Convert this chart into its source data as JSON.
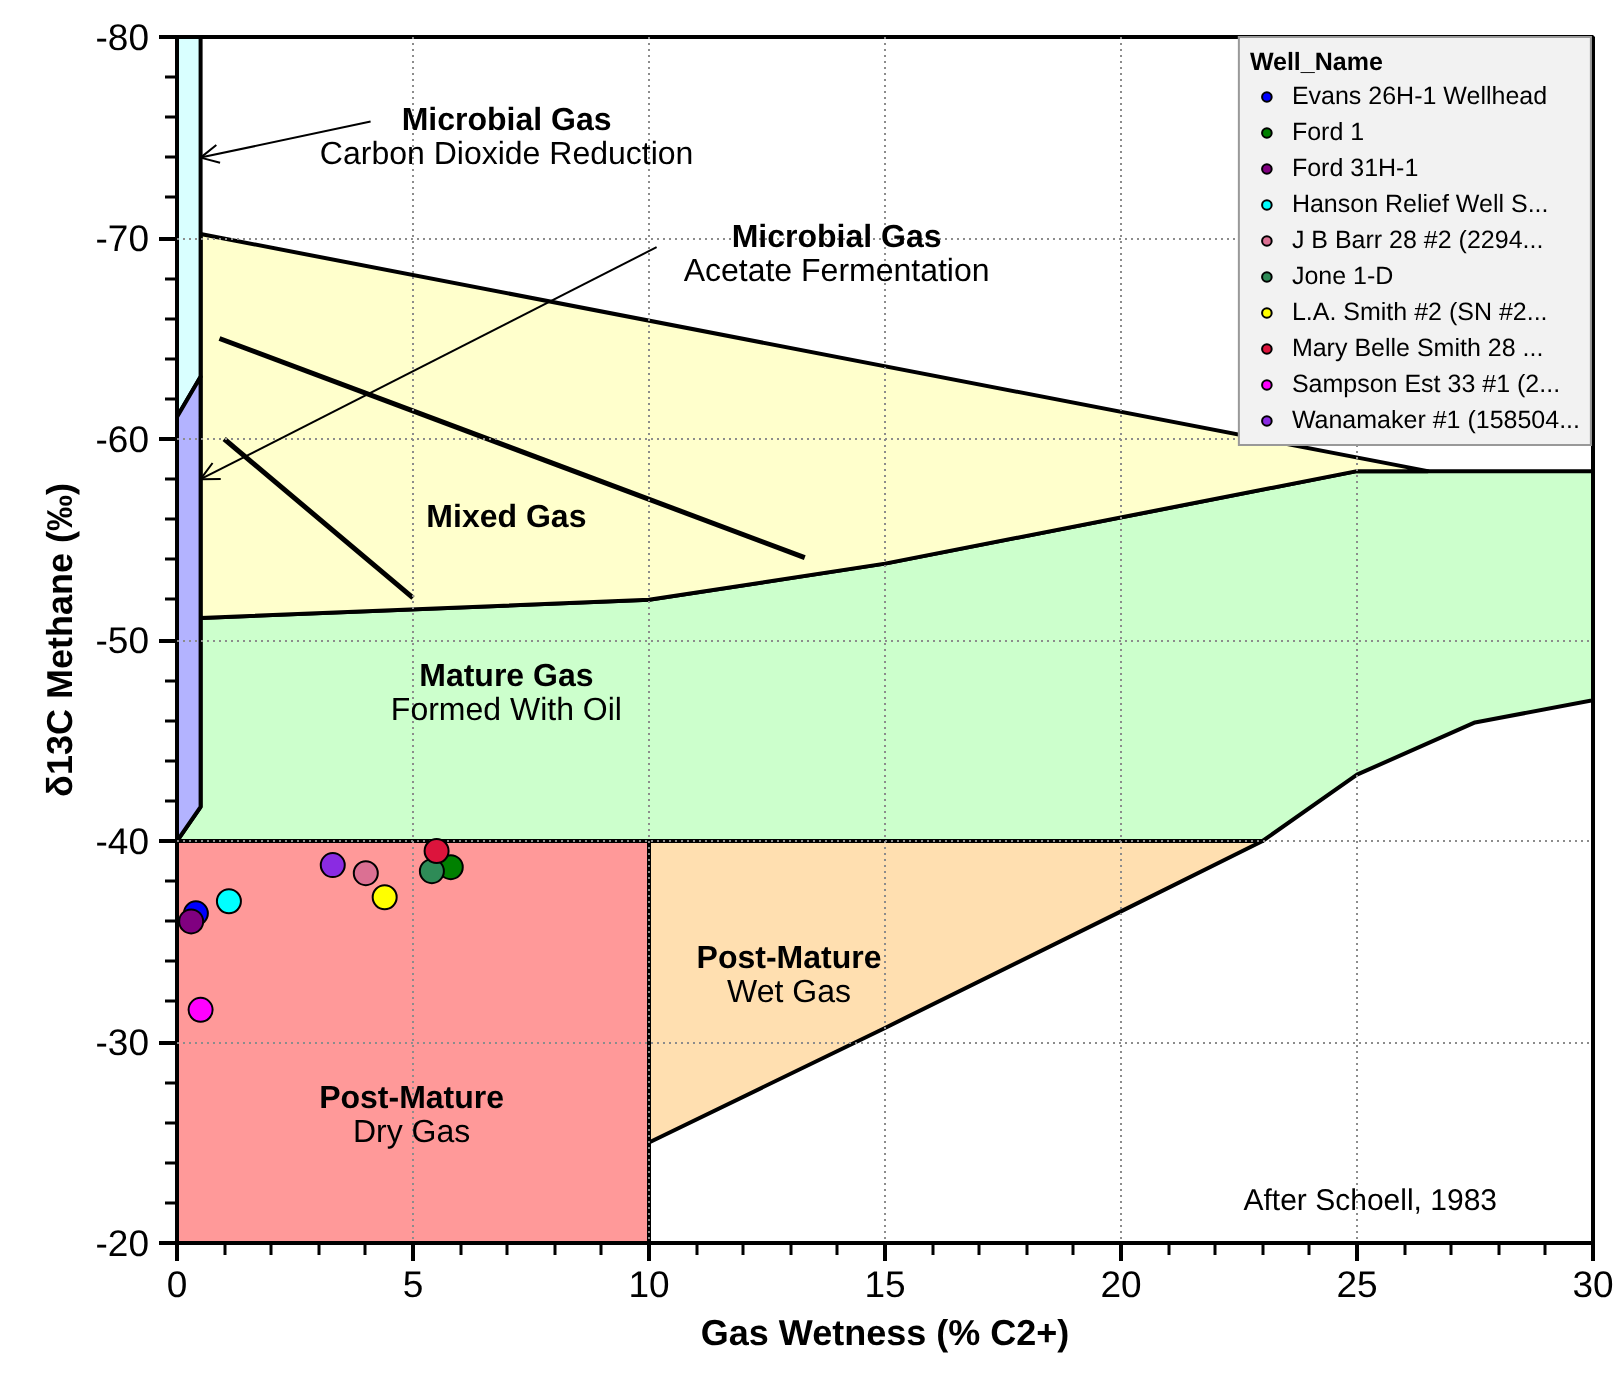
{
  "chart_data": {
    "type": "scatter",
    "xlabel": "Gas Wetness (% C2+)",
    "ylabel": "δ13C Methane (‰)",
    "legend_title": "Well_Name",
    "xlim": [
      0,
      30
    ],
    "ylim": [
      -20,
      -80
    ],
    "xticks": [
      0,
      {
        "value": 1,
        "label": null
      },
      {
        "value": 2,
        "label": null
      },
      {
        "value": 3,
        "label": null
      },
      {
        "value": 4,
        "label": null
      },
      5,
      {
        "value": 6,
        "label": null
      },
      {
        "value": 7,
        "label": null
      },
      {
        "value": 8,
        "label": null
      },
      {
        "value": 9,
        "label": null
      },
      10,
      {
        "value": 11,
        "label": null
      },
      {
        "value": 12,
        "label": null
      },
      {
        "value": 13,
        "label": null
      },
      {
        "value": 14,
        "label": null
      },
      15,
      {
        "value": 16,
        "label": null
      },
      {
        "value": 17,
        "label": null
      },
      {
        "value": 18,
        "label": null
      },
      {
        "value": 19,
        "label": null
      },
      20,
      {
        "value": 21,
        "label": null
      },
      {
        "value": 22,
        "label": null
      },
      {
        "value": 23,
        "label": null
      },
      {
        "value": 24,
        "label": null
      },
      25,
      {
        "value": 26,
        "label": null
      },
      {
        "value": 27,
        "label": null
      },
      {
        "value": 28,
        "label": null
      },
      {
        "value": 29,
        "label": null
      },
      30
    ],
    "yticks": [
      -20,
      {
        "value": -22,
        "label": null
      },
      {
        "value": -24,
        "label": null
      },
      {
        "value": -26,
        "label": null
      },
      {
        "value": -28,
        "label": null
      },
      -30,
      {
        "value": -32,
        "label": null
      },
      {
        "value": -34,
        "label": null
      },
      {
        "value": -36,
        "label": null
      },
      {
        "value": -38,
        "label": null
      },
      -40,
      {
        "value": -42,
        "label": null
      },
      {
        "value": -44,
        "label": null
      },
      {
        "value": -46,
        "label": null
      },
      {
        "value": -48,
        "label": null
      },
      -50,
      {
        "value": -52,
        "label": null
      },
      {
        "value": -54,
        "label": null
      },
      {
        "value": -56,
        "label": null
      },
      {
        "value": -58,
        "label": null
      },
      -60,
      {
        "value": -62,
        "label": null
      },
      {
        "value": -64,
        "label": null
      },
      {
        "value": -66,
        "label": null
      },
      {
        "value": -68,
        "label": null
      },
      -70,
      {
        "value": -72,
        "label": null
      },
      {
        "value": -74,
        "label": null
      },
      {
        "value": -76,
        "label": null
      },
      {
        "value": -78,
        "label": null
      },
      -80
    ],
    "grid": true,
    "legend": "top right",
    "annotations": [
      {
        "text": "Microbial Gas\nCarbon Dioxide Reduction",
        "x": 0.5,
        "y": -74
      },
      {
        "text": "Microbial Gas\nAcetate Fermentation",
        "x": 0.5,
        "y": -58
      },
      "Mixed Gas",
      "Mature Gas\nFormed With Oil",
      "Post-Mature\nWet Gas",
      "Post-Mature\nDry Gas",
      "After Schoell, 1983"
    ],
    "series": [
      {
        "type": "area",
        "color": "#ff9999",
        "x": [
          0,
          10
        ],
        "values": [
          -40,
          -40
        ]
      },
      {
        "type": "area",
        "color": "#ffdfb0",
        "x": [
          10,
          23,
          20,
          15,
          10
        ],
        "values": [
          -40,
          -40,
          -36.5,
          -30.7,
          -25.0
        ]
      },
      {
        "type": "area",
        "color": "#ccffcc",
        "x": [
          0,
          23,
          25,
          27.5,
          30,
          30,
          25,
          15,
          10,
          0.5,
          0.5
        ],
        "values": [
          -40,
          -40,
          -43.3,
          -45.9,
          -47.0,
          -58.4,
          -58.4,
          -53.8,
          -52.0,
          -51.1,
          -41.7
        ]
      },
      {
        "type": "area",
        "color": "#ffffcc",
        "x": [
          0.5,
          26.5,
          25,
          15,
          10,
          0.5
        ],
        "values": [
          -70.2,
          -58.4,
          -58.4,
          -53.8,
          -52.0,
          -51.1
        ]
      },
      {
        "type": "area",
        "color": "#d9ffff",
        "x": [
          0,
          0.5,
          0.5,
          0
        ],
        "values": [
          -80,
          -80,
          -63.1,
          -61.1
        ]
      },
      {
        "type": "area",
        "color": "#b3b3ff",
        "x": [
          0,
          0.5,
          0.5,
          0
        ],
        "values": [
          -61.1,
          -63.1,
          -41.7,
          -40
        ]
      },
      {
        "type": "line",
        "color": "#000000",
        "x": [
          0.9,
          13.3
        ],
        "values": [
          -65.0,
          -54.1
        ]
      },
      {
        "type": "line",
        "color": "#000000",
        "x": [
          1.0,
          5.0
        ],
        "values": [
          -60.0,
          -52.1
        ]
      },
      {
        "name": "Evans 26H-1 Wellhead",
        "color": "#0000ff",
        "marker": "circle",
        "x": [
          0.4
        ],
        "values": [
          -36.4
        ]
      },
      {
        "name": "Ford 1",
        "color": "#008000",
        "marker": "circle",
        "x": [
          5.8
        ],
        "values": [
          -38.7
        ]
      },
      {
        "name": "Ford 31H-1",
        "color": "#800080",
        "marker": "circle",
        "x": [
          0.3
        ],
        "values": [
          -36.0
        ]
      },
      {
        "name": "Hanson Relief Well S...",
        "color": "#00ffff",
        "marker": "circle",
        "x": [
          1.1
        ],
        "values": [
          -37.0
        ]
      },
      {
        "name": "J B Barr 28 #2 (2294...",
        "color": "#db7093",
        "marker": "circle",
        "x": [
          4.0
        ],
        "values": [
          -38.4
        ]
      },
      {
        "name": "Jone 1-D",
        "color": "#2e8b57",
        "marker": "circle",
        "x": [
          5.4
        ],
        "values": [
          -38.5
        ]
      },
      {
        "name": "L.A. Smith #2 (SN #2...",
        "color": "#ffff00",
        "marker": "circle",
        "x": [
          4.4
        ],
        "values": [
          -37.2
        ]
      },
      {
        "name": "Mary Belle Smith 28 ...",
        "color": "#dc143c",
        "marker": "circle",
        "x": [
          5.5
        ],
        "values": [
          -39.5
        ]
      },
      {
        "name": "Sampson Est 33 #1 (2...",
        "color": "#ff00ff",
        "marker": "circle",
        "x": [
          0.5
        ],
        "values": [
          -31.6
        ]
      },
      {
        "name": "Wanamaker #1 (158504...",
        "color": "#8a2be2",
        "marker": "circle",
        "x": [
          3.3
        ],
        "values": [
          -38.8
        ]
      }
    ]
  }
}
